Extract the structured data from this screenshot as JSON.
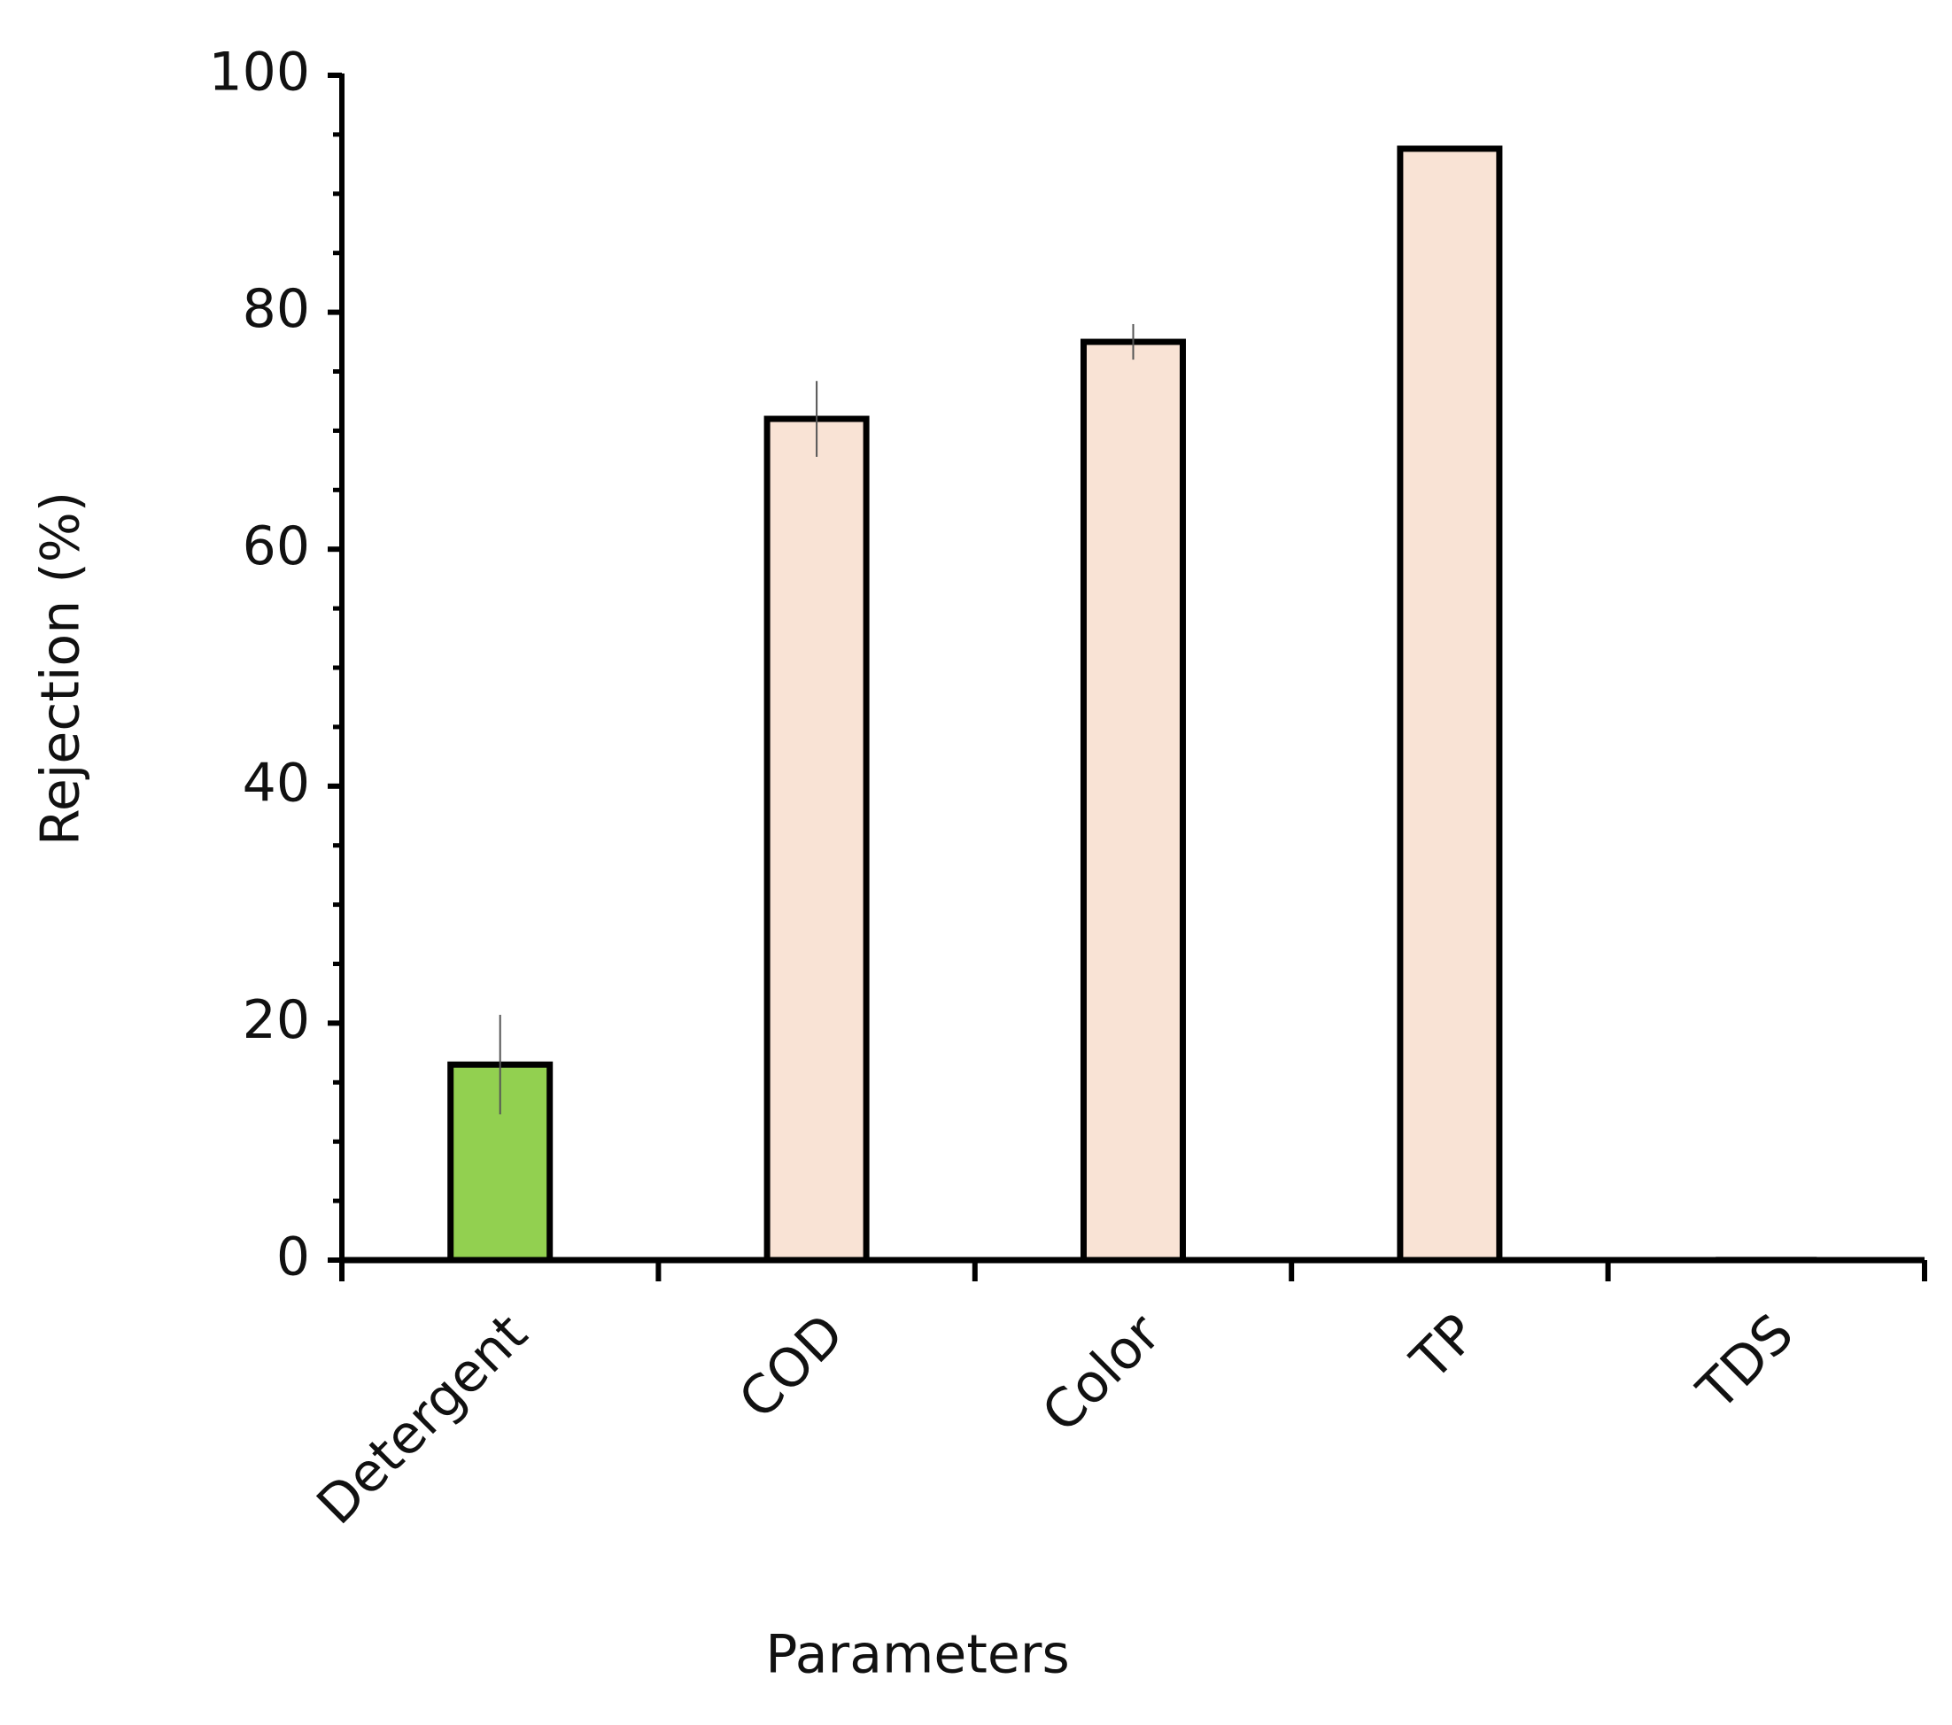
{
  "chart_data": {
    "type": "bar",
    "x_label": "Parameters",
    "y_label": "Rejection (%)",
    "categories": [
      "Detergent",
      "COD",
      "Color",
      "TP",
      "TDS"
    ],
    "values": [
      16.5,
      71,
      77.5,
      93.8,
      0.2
    ],
    "errors": [
      4.2,
      3.2,
      1.5,
      0,
      0
    ],
    "colors": [
      "#92d050",
      "#f9e3d5",
      "#f9e3d5",
      "#f9e3d5",
      "#f9e3d5"
    ],
    "ylim": [
      0,
      100
    ],
    "yticks": [
      0,
      20,
      40,
      60,
      80,
      100
    ],
    "yminorticks": [
      5,
      10,
      15,
      25,
      30,
      35,
      45,
      50,
      55,
      65,
      70,
      75,
      85,
      90,
      95
    ]
  }
}
